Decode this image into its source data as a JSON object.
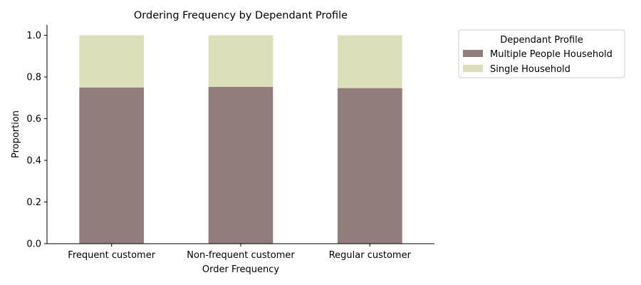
{
  "chart_data": {
    "type": "bar",
    "stacked": true,
    "title": "Ordering Frequency by Dependant Profile",
    "xlabel": "Order Frequency",
    "ylabel": "Proportion",
    "categories": [
      "Frequent customer",
      "Non-frequent customer",
      "Regular customer"
    ],
    "ylim": [
      0,
      1.05
    ],
    "yticks": [
      "0.0",
      "0.2",
      "0.4",
      "0.6",
      "0.8",
      "1.0"
    ],
    "grid": false,
    "legend": {
      "title": "Dependant Profile",
      "placement": "outside-top-right"
    },
    "series": [
      {
        "name": "Multiple People Household",
        "color": "#917e7c",
        "values": [
          0.75,
          0.753,
          0.747
        ]
      },
      {
        "name": "Single Household",
        "color": "#dcdfba",
        "values": [
          0.25,
          0.247,
          0.253
        ]
      }
    ]
  }
}
